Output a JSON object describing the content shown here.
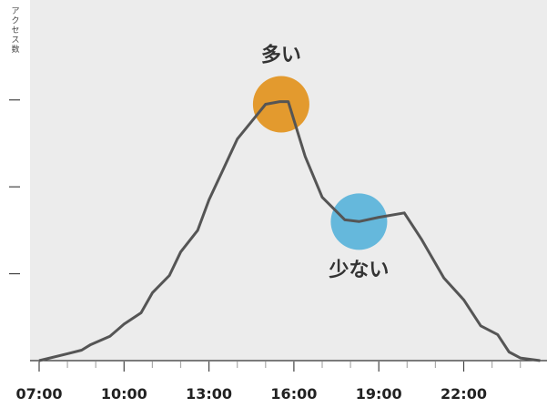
{
  "chart_data": {
    "type": "line",
    "ylabel": "アクセス数",
    "x_ticks": [
      "07:00",
      "10:00",
      "13:00",
      "16:00",
      "19:00",
      "22:00"
    ],
    "x_range_hours": [
      6.7,
      24.8
    ],
    "y_range": [
      0,
      4.15
    ],
    "series": [
      {
        "color": "#555555",
        "points": [
          [
            7.0,
            0.0
          ],
          [
            8.0,
            0.08
          ],
          [
            8.5,
            0.12
          ],
          [
            8.8,
            0.18
          ],
          [
            9.5,
            0.28
          ],
          [
            10.0,
            0.42
          ],
          [
            10.6,
            0.55
          ],
          [
            11.0,
            0.78
          ],
          [
            11.6,
            0.98
          ],
          [
            12.0,
            1.25
          ],
          [
            12.6,
            1.5
          ],
          [
            13.0,
            1.85
          ],
          [
            13.5,
            2.2
          ],
          [
            14.0,
            2.55
          ],
          [
            14.5,
            2.75
          ],
          [
            15.0,
            2.95
          ],
          [
            15.5,
            2.98
          ],
          [
            15.8,
            2.98
          ],
          [
            16.4,
            2.35
          ],
          [
            17.0,
            1.88
          ],
          [
            17.8,
            1.62
          ],
          [
            18.3,
            1.6
          ],
          [
            19.0,
            1.65
          ],
          [
            19.9,
            1.7
          ],
          [
            20.5,
            1.4
          ],
          [
            21.3,
            0.95
          ],
          [
            22.0,
            0.7
          ],
          [
            22.6,
            0.4
          ],
          [
            23.2,
            0.3
          ],
          [
            23.6,
            0.1
          ],
          [
            24.0,
            0.03
          ],
          [
            24.7,
            0.0
          ]
        ]
      }
    ],
    "annotations": [
      {
        "label": "多い",
        "color": "#E39A2E",
        "x": 15.55,
        "y": 2.95
      },
      {
        "label": "少ない",
        "color": "#65B8DC",
        "x": 18.3,
        "y": 1.6
      }
    ],
    "background": "#ECECEC",
    "grid": false
  }
}
